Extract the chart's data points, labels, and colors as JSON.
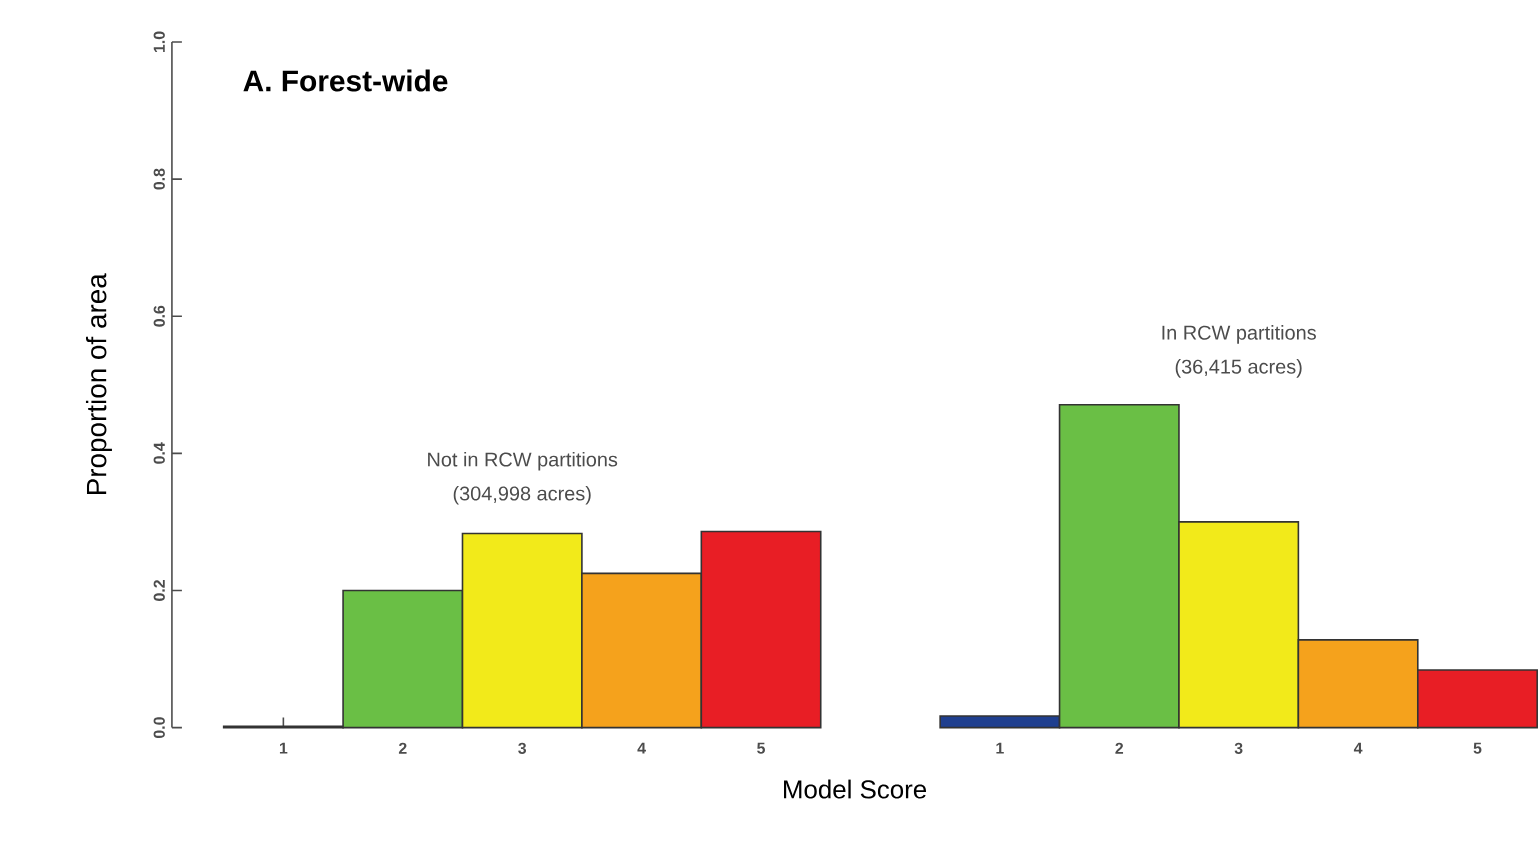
{
  "chart_data": {
    "type": "bar",
    "title": "A. Forest-wide",
    "xlabel": "Model Score",
    "ylabel": "Proportion of area",
    "categories": [
      "1",
      "2",
      "3",
      "4",
      "5",
      null,
      "1",
      "2",
      "3",
      "4",
      "5"
    ],
    "values": [
      0.002,
      0.2,
      0.283,
      0.225,
      0.286,
      null,
      0.017,
      0.471,
      0.3,
      0.128,
      0.084
    ],
    "colors": [
      "#1f3f8f",
      "#6abf45",
      "#f2ea1a",
      "#f5a21c",
      "#e81e25",
      "#ffffff",
      "#1f3f8f",
      "#6abf45",
      "#f2ea1a",
      "#f5a21c",
      "#e81e25"
    ],
    "ylim": [
      0,
      1
    ],
    "yticks": [
      {
        "value": 0,
        "label": "0.0"
      },
      {
        "value": 0.2,
        "label": "0.2"
      },
      {
        "value": 0.4,
        "label": "0.4"
      },
      {
        "value": 0.6,
        "label": "0.6"
      },
      {
        "value": 0.8,
        "label": "0.8"
      },
      {
        "value": 1,
        "label": "1.0"
      }
    ],
    "annotations": [
      "Not in RCW partitions",
      "(304,998 acres)",
      "In RCW partitions",
      "(36,415 acres)"
    ],
    "grid": false
  }
}
